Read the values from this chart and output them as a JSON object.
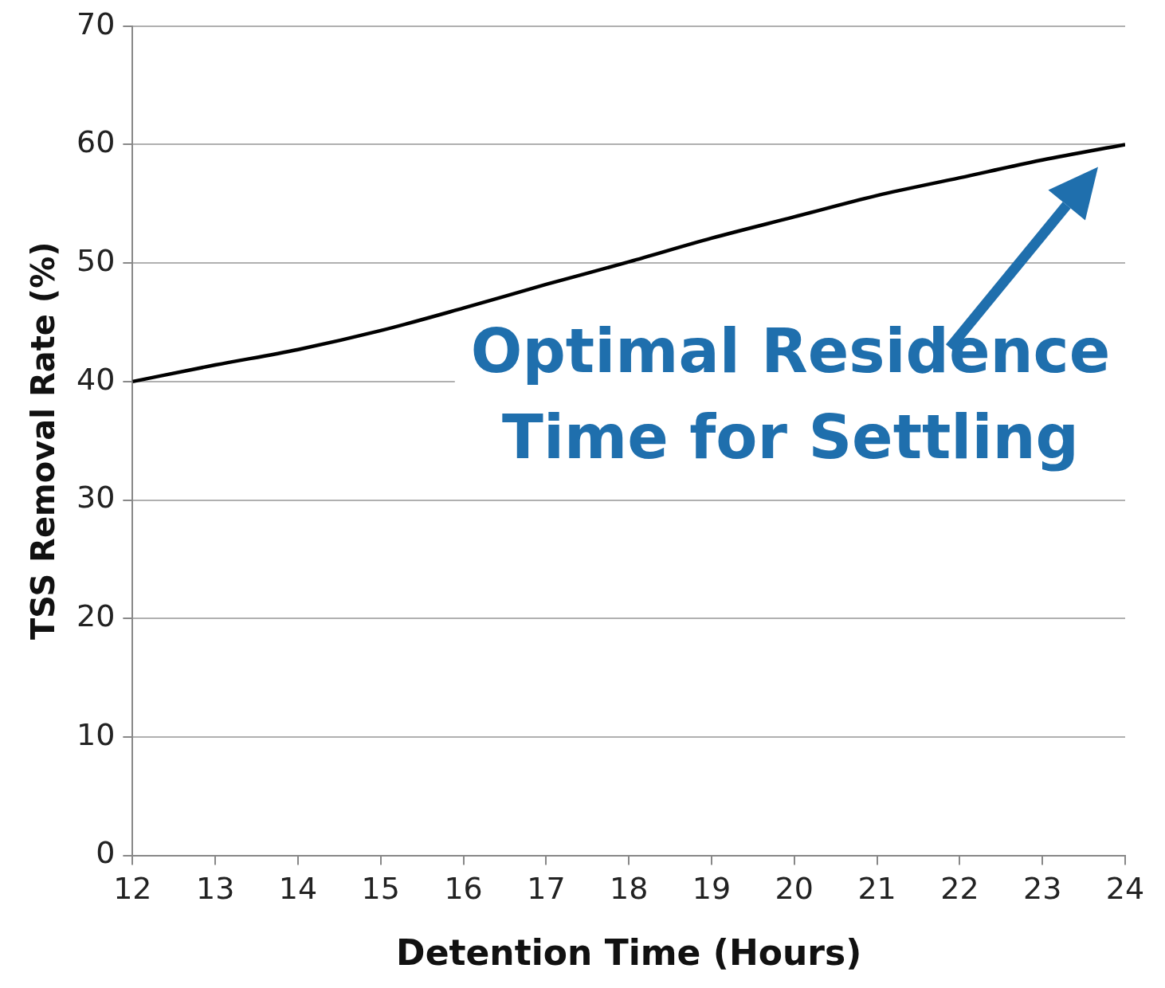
{
  "chart_data": {
    "type": "line",
    "xlabel": "Detention Time (Hours)",
    "ylabel": "TSS Removal Rate (%)",
    "x": [
      12,
      13,
      14,
      15,
      16,
      17,
      18,
      19,
      20,
      21,
      22,
      23,
      24
    ],
    "series": [
      {
        "color": "#000000",
        "values": [
          40,
          41.4,
          42.7,
          44.3,
          46.2,
          48.2,
          50.1,
          52.1,
          53.9,
          55.7,
          57.2,
          58.7,
          60
        ]
      }
    ],
    "xlim": [
      12,
      24
    ],
    "xticks": [
      12,
      13,
      14,
      15,
      16,
      17,
      18,
      19,
      20,
      21,
      22,
      23,
      24
    ],
    "ylim": [
      0,
      70
    ],
    "yticks": [
      0,
      10,
      20,
      30,
      40,
      50,
      60,
      70
    ],
    "grid": "y",
    "legend": false,
    "marker": "none",
    "line_style": "solid",
    "annotations": [
      {
        "text": "Optimal Residence\nTime for Settling",
        "x": 24,
        "y": 60
      }
    ]
  }
}
